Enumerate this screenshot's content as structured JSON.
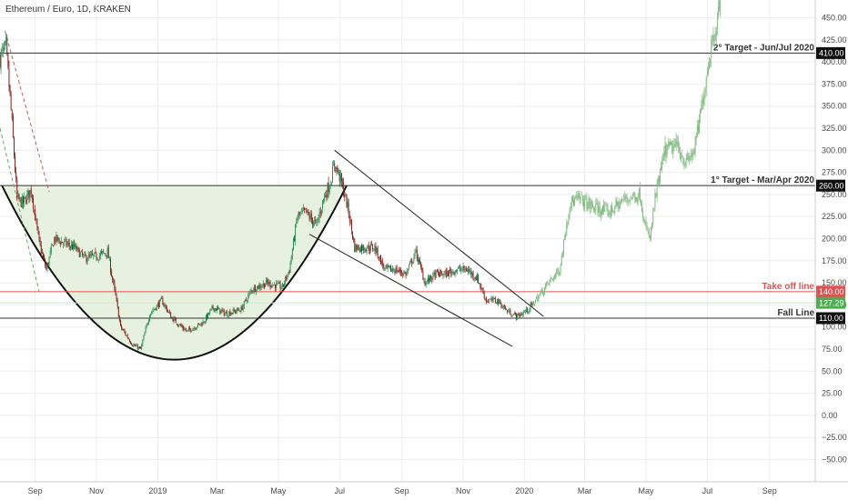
{
  "symbol": "Ethereum / Euro, 1D, KRAKEN",
  "colors": {
    "up": "#2e8b57",
    "down": "#7a1a14",
    "projection": "#7fb77e",
    "cup_fill": "#e6f2df",
    "take_off": "#e05252",
    "grid": "#eeeeee",
    "axis_text": "#4a4a4a"
  },
  "chart_data": {
    "type": "candlestick",
    "y_axis": {
      "ticks": [
        450,
        425,
        400,
        375,
        350,
        325,
        300,
        275,
        250,
        225,
        200,
        175,
        150,
        125,
        100,
        75,
        50,
        25,
        0,
        -25,
        -50
      ],
      "tick_labels": [
        "450.00",
        "425.00",
        "400.00",
        "375.00",
        "350.00",
        "325.00",
        "300.00",
        "275.00",
        "250.00",
        "225.00",
        "200.00",
        "175.00",
        "150.00",
        "125.00",
        "100.00",
        "75.00",
        "50.00",
        "25.00",
        "0.00",
        "−25.00",
        "−50.00"
      ],
      "range": [
        -61,
        466
      ]
    },
    "x_axis": {
      "range": [
        "2018-07-28",
        "2020-10-23"
      ],
      "ticks": [
        {
          "label": "Sep",
          "date": "2018-09-01"
        },
        {
          "label": "Nov",
          "date": "2018-11-01"
        },
        {
          "label": "2019",
          "date": "2019-01-01"
        },
        {
          "label": "Mar",
          "date": "2019-03-01"
        },
        {
          "label": "May",
          "date": "2019-05-01"
        },
        {
          "label": "Jul",
          "date": "2019-07-01"
        },
        {
          "label": "Sep",
          "date": "2019-09-01"
        },
        {
          "label": "Nov",
          "date": "2019-11-01"
        },
        {
          "label": "2020",
          "date": "2020-01-01"
        },
        {
          "label": "Mar",
          "date": "2020-03-01"
        },
        {
          "label": "May",
          "date": "2020-05-01"
        },
        {
          "label": "Jul",
          "date": "2020-07-01"
        },
        {
          "label": "Sep",
          "date": "2020-09-01"
        }
      ]
    },
    "price_path": [
      [
        "2018-07-28",
        405
      ],
      [
        "2018-08-03",
        415
      ],
      [
        "2018-08-08",
        345
      ],
      [
        "2018-08-14",
        245
      ],
      [
        "2018-08-20",
        240
      ],
      [
        "2018-08-28",
        255
      ],
      [
        "2018-09-05",
        195
      ],
      [
        "2018-09-12",
        165
      ],
      [
        "2018-09-20",
        200
      ],
      [
        "2018-09-30",
        195
      ],
      [
        "2018-10-10",
        190
      ],
      [
        "2018-10-20",
        178
      ],
      [
        "2018-11-01",
        180
      ],
      [
        "2018-11-12",
        185
      ],
      [
        "2018-11-20",
        135
      ],
      [
        "2018-11-25",
        100
      ],
      [
        "2018-12-07",
        80
      ],
      [
        "2018-12-15",
        75
      ],
      [
        "2018-12-24",
        115
      ],
      [
        "2019-01-05",
        130
      ],
      [
        "2019-01-15",
        110
      ],
      [
        "2019-01-30",
        95
      ],
      [
        "2019-02-15",
        105
      ],
      [
        "2019-02-25",
        122
      ],
      [
        "2019-03-10",
        115
      ],
      [
        "2019-03-25",
        120
      ],
      [
        "2019-04-05",
        143
      ],
      [
        "2019-04-20",
        150
      ],
      [
        "2019-05-05",
        145
      ],
      [
        "2019-05-12",
        165
      ],
      [
        "2019-05-20",
        225
      ],
      [
        "2019-05-28",
        230
      ],
      [
        "2019-06-08",
        215
      ],
      [
        "2019-06-15",
        245
      ],
      [
        "2019-06-22",
        265
      ],
      [
        "2019-06-26",
        285
      ],
      [
        "2019-07-01",
        270
      ],
      [
        "2019-07-05",
        255
      ],
      [
        "2019-07-10",
        230
      ],
      [
        "2019-07-16",
        190
      ],
      [
        "2019-07-25",
        190
      ],
      [
        "2019-08-05",
        190
      ],
      [
        "2019-08-15",
        165
      ],
      [
        "2019-08-25",
        165
      ],
      [
        "2019-09-05",
        160
      ],
      [
        "2019-09-15",
        185
      ],
      [
        "2019-09-24",
        150
      ],
      [
        "2019-10-05",
        160
      ],
      [
        "2019-10-15",
        160
      ],
      [
        "2019-10-25",
        165
      ],
      [
        "2019-11-05",
        165
      ],
      [
        "2019-11-15",
        155
      ],
      [
        "2019-11-24",
        130
      ],
      [
        "2019-12-05",
        130
      ],
      [
        "2019-12-15",
        118
      ],
      [
        "2019-12-25",
        112
      ],
      [
        "2020-01-05",
        120
      ],
      [
        "2020-01-10",
        127
      ]
    ],
    "projection_path": [
      [
        "2020-01-10",
        127
      ],
      [
        "2020-01-25",
        150
      ],
      [
        "2020-02-05",
        165
      ],
      [
        "2020-02-15",
        240
      ],
      [
        "2020-02-25",
        245
      ],
      [
        "2020-03-10",
        235
      ],
      [
        "2020-03-25",
        230
      ],
      [
        "2020-04-10",
        245
      ],
      [
        "2020-04-25",
        250
      ],
      [
        "2020-05-01",
        210
      ],
      [
        "2020-05-05",
        200
      ],
      [
        "2020-05-10",
        245
      ],
      [
        "2020-05-20",
        300
      ],
      [
        "2020-06-01",
        305
      ],
      [
        "2020-06-10",
        285
      ],
      [
        "2020-06-18",
        300
      ],
      [
        "2020-06-25",
        345
      ],
      [
        "2020-06-28",
        370
      ],
      [
        "2020-07-05",
        420
      ],
      [
        "2020-07-14",
        465
      ]
    ],
    "horizontal_levels": [
      {
        "value": 410,
        "label": "410.00",
        "annotation": "2° Target - Jun/Jul 2020",
        "color": "#333333"
      },
      {
        "value": 260,
        "label": "260.00",
        "annotation": "1° Target - Mar/Apr 2020",
        "color": "#333333"
      },
      {
        "value": 140,
        "label": "140.00",
        "annotation": "Take off line",
        "color": "#e05252"
      },
      {
        "value": 110,
        "label": "110.00",
        "annotation": "Fall Line",
        "color": "#333333"
      }
    ],
    "last_price": {
      "value": 127.29,
      "label": "127.29",
      "color": "#4caf50"
    },
    "cup": {
      "rim": 260,
      "bottom": 63,
      "start": "2018-07-30",
      "end": "2019-07-08"
    },
    "falling_wedge": {
      "upper": [
        [
          "2019-06-26",
          300
        ],
        [
          "2020-01-20",
          112
        ]
      ],
      "lower": [
        [
          "2019-06-01",
          205
        ],
        [
          "2019-12-20",
          78
        ]
      ]
    },
    "early_dashed_lines": [
      [
        [
          "2018-08-02",
          435
        ],
        [
          "2018-09-15",
          253
        ]
      ],
      [
        [
          "2018-07-28",
          325
        ],
        [
          "2018-09-05",
          140
        ]
      ]
    ]
  }
}
